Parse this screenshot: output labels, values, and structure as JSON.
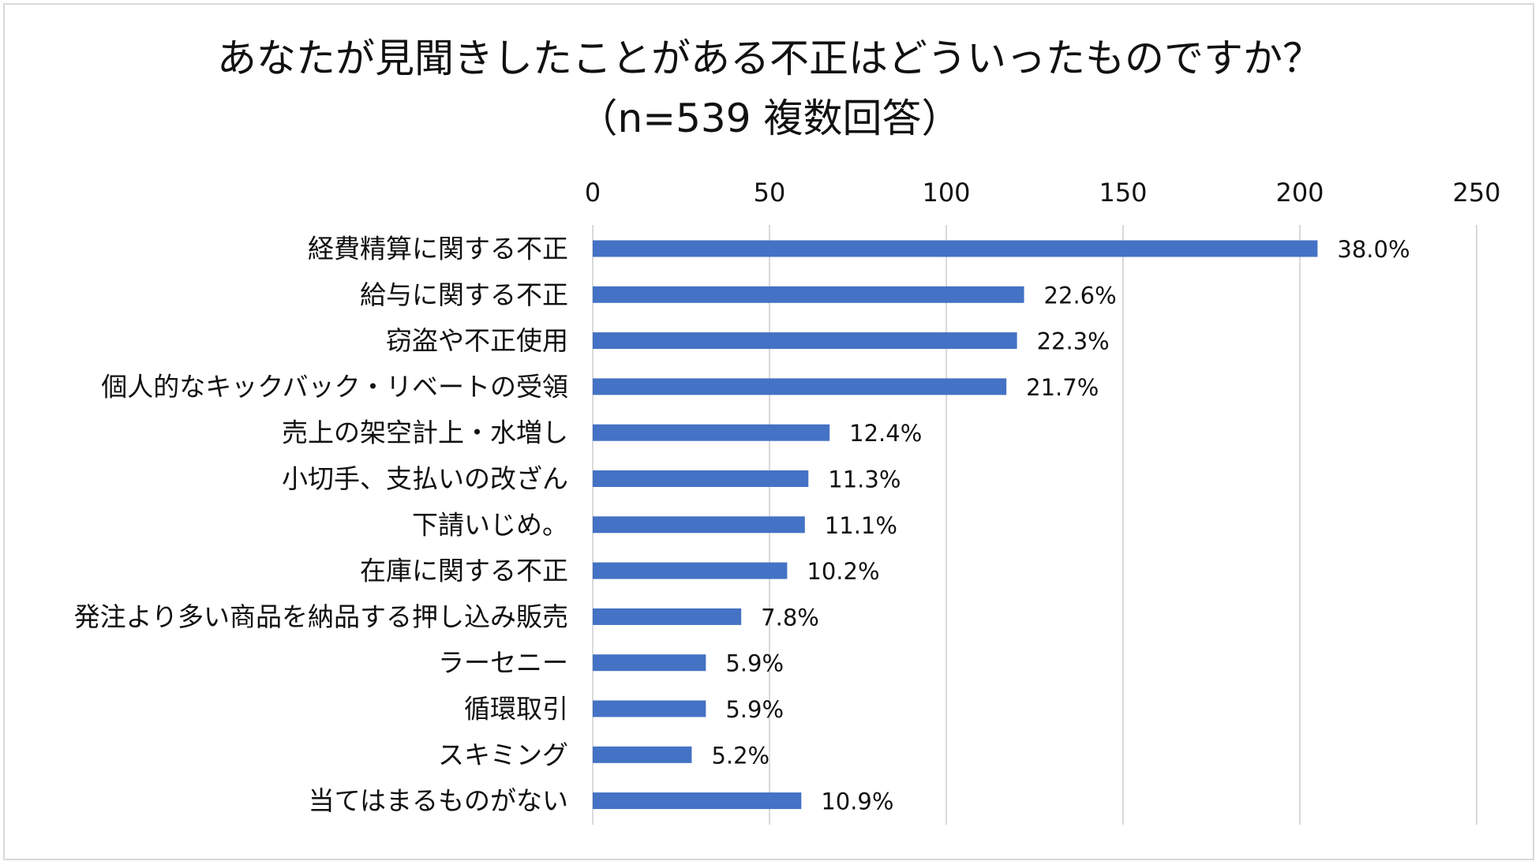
{
  "chart_data": {
    "type": "bar",
    "orientation": "horizontal",
    "title": "あなたが見聞きしたことがある不正はどういったものですか？",
    "subtitle": "（n=539 複数回答）",
    "categories": [
      "経費精算に関する不正",
      "給与に関する不正",
      "窃盗や不正使用",
      "個人的なキックバック・リベートの受領",
      "売上の架空計上・水増し",
      "小切手、支払いの改ざん",
      "下請いじめ。",
      "在庫に関する不正",
      "発注より多い商品を納品する押し込み販売",
      "ラーセニー",
      "循環取引",
      "スキミング",
      "当てはまるものがない"
    ],
    "values": [
      205,
      122,
      120,
      117,
      67,
      61,
      60,
      55,
      42,
      32,
      32,
      28,
      59
    ],
    "data_labels": [
      "38.0%",
      "22.6%",
      "22.3%",
      "21.7%",
      "12.4%",
      "11.3%",
      "11.1%",
      "10.2%",
      "7.8%",
      "5.9%",
      "5.9%",
      "5.2%",
      "10.9%"
    ],
    "xlim": [
      0,
      250
    ],
    "x_ticks": [
      0,
      50,
      100,
      150,
      200,
      250
    ],
    "x_axis_position": "top",
    "grid": true,
    "bar_color": "#4472C4",
    "grid_color": "#d9d9d9",
    "xlabel": "",
    "ylabel": ""
  }
}
